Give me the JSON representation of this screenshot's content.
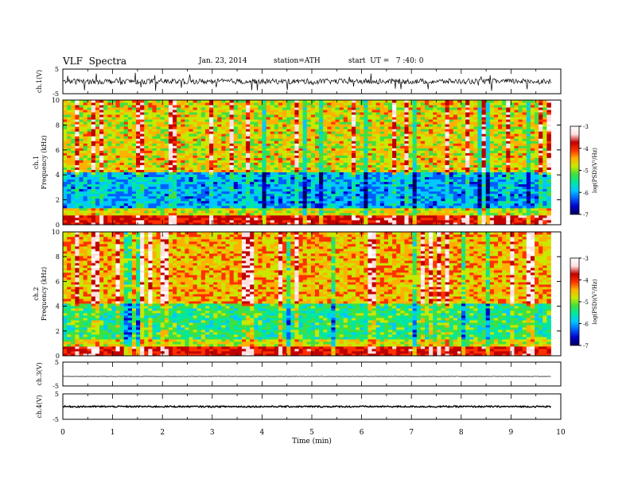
{
  "header": {
    "title": "VLF  Spectra",
    "date": "Jan. 23, 2014",
    "station": "station=ATH",
    "start_ut": "start  UT =   7 :40: 0"
  },
  "colors": {
    "colormap": [
      "#000060",
      "#0000c8",
      "#0060ff",
      "#00c8ff",
      "#00e8a0",
      "#40e040",
      "#c8e800",
      "#ffb000",
      "#ff3000",
      "#c00000",
      "#ffe0e0",
      "#ffffff"
    ],
    "trace": "#000000"
  },
  "chart_data": [
    {
      "type": "line",
      "panel": "ch1-waveform",
      "ylabel": "ch.1(V)",
      "ylim": [
        -5,
        5
      ],
      "yticks": [
        "5",
        "-5"
      ],
      "xlim": [
        0,
        10
      ],
      "description": "noisy waveform, amplitude about ±1 V with impulsive spikes",
      "x_end": 9.8
    },
    {
      "type": "heatmap",
      "panel": "ch1-spectrogram",
      "ylabel": "Frequency  (kHz)",
      "channel_label": "ch.1",
      "ylim": [
        0,
        10
      ],
      "yticks": [
        "0",
        "2",
        "4",
        "6",
        "8",
        "10"
      ],
      "xlim": [
        0,
        10
      ],
      "x_end": 9.8,
      "colorbar": {
        "label": "log(PSD)(V²/Hz)",
        "range": [
          -7,
          -3
        ],
        "ticks": [
          "-7",
          "-6",
          "-5",
          "-4",
          "-3"
        ]
      }
    },
    {
      "type": "heatmap",
      "panel": "ch2-spectrogram",
      "ylabel": "Frequency  (kHz)",
      "channel_label": "ch.2",
      "ylim": [
        0,
        10
      ],
      "yticks": [
        "0",
        "2",
        "4",
        "6",
        "8",
        "10"
      ],
      "xlim": [
        0,
        10
      ],
      "x_end": 9.8,
      "colorbar": {
        "label": "log(PSD)(V²/Hz)",
        "range": [
          -7,
          -3
        ],
        "ticks": [
          "-7",
          "-6",
          "-5",
          "-4",
          "-3"
        ]
      }
    },
    {
      "type": "line",
      "panel": "ch3-waveform",
      "ylabel": "ch.3(V)",
      "ylim": [
        -5,
        5
      ],
      "yticks": [
        "5",
        "-5"
      ],
      "xlim": [
        0,
        10
      ],
      "x_end": 9.8,
      "description": "flat trace near -1 V"
    },
    {
      "type": "line",
      "panel": "ch4-waveform",
      "ylabel": "ch.4(V)",
      "ylim": [
        -5,
        5
      ],
      "yticks": [
        "5",
        "-5"
      ],
      "xlim": [
        0,
        10
      ],
      "x_end": 9.8,
      "description": "thick flat band near 0 V"
    }
  ],
  "x_axis": {
    "label": "Time  (min)",
    "ticks": [
      "0",
      "1",
      "2",
      "3",
      "4",
      "5",
      "6",
      "7",
      "8",
      "9",
      "10"
    ]
  }
}
